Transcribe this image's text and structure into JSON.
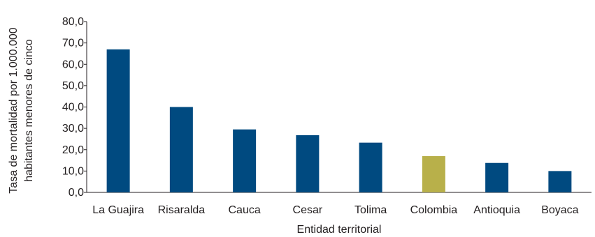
{
  "chart_data": {
    "type": "bar",
    "categories": [
      "La Guajira",
      "Risaralda",
      "Cauca",
      "Cesar",
      "Tolima",
      "Colombia",
      "Antioquia",
      "Boyaca"
    ],
    "values": [
      67.0,
      40.0,
      29.5,
      26.8,
      23.3,
      17.0,
      13.8,
      10.0
    ],
    "bar_colors": [
      "#004a80",
      "#004a80",
      "#004a80",
      "#004a80",
      "#004a80",
      "#b8b04a",
      "#004a80",
      "#004a80"
    ],
    "xlabel": "Entidad territorial",
    "ylabel_lines": [
      "Tasa de mortalidad por 1.000.000",
      "habitantes menores de cinco"
    ],
    "ylim": [
      0,
      80
    ],
    "yticks": [
      "0,0",
      "10,0",
      "20,0",
      "30,0",
      "40,0",
      "50,0",
      "60,0",
      "70,0",
      "80,0"
    ],
    "grid": false,
    "legend": "none"
  }
}
